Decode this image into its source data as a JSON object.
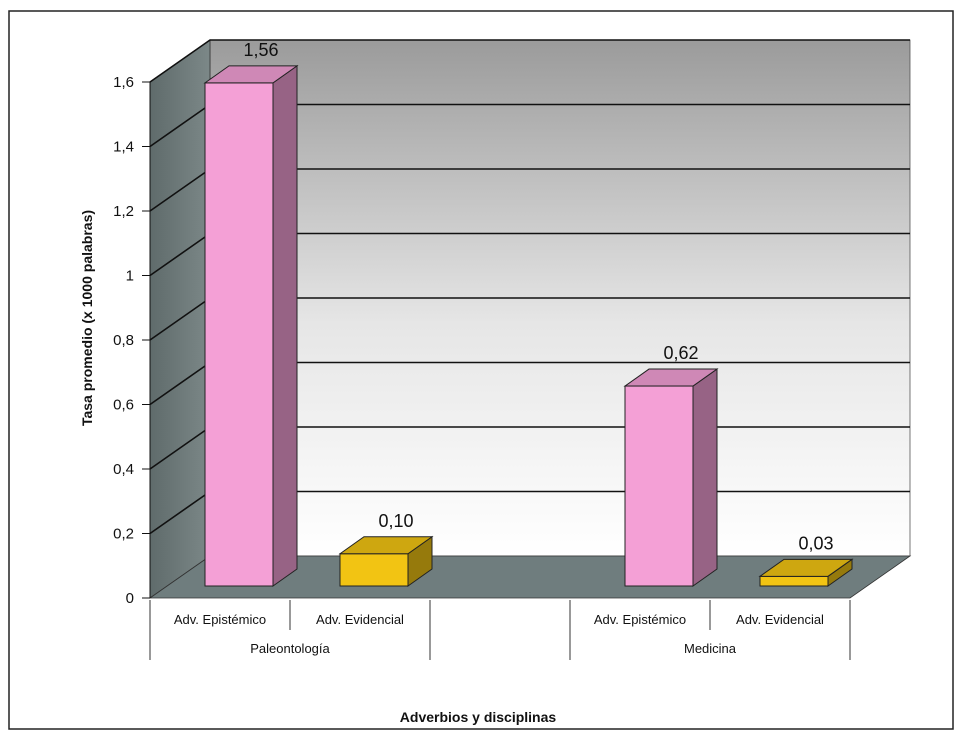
{
  "chart_data": {
    "type": "bar",
    "title": "",
    "xlabel": "Adverbios y disciplinas",
    "ylabel": "Tasa promedio (x 1000 palabras)",
    "ylim": [
      0,
      1.6
    ],
    "yticks": [
      "0",
      "0,2",
      "0,4",
      "0,6",
      "0,8",
      "1",
      "1,2",
      "1,4",
      "1,6"
    ],
    "grid": true,
    "groups": [
      {
        "name": "Paleontología",
        "bars": [
          {
            "category": "Adv. Epistémico",
            "value": 1.56,
            "label": "1,56",
            "color": "#f4a0d6"
          },
          {
            "category": "Adv. Evidencial",
            "value": 0.1,
            "label": "0,10",
            "color": "#f2c413"
          }
        ]
      },
      {
        "name": "Medicina",
        "bars": [
          {
            "category": "Adv. Epistémico",
            "value": 0.62,
            "label": "0,62",
            "color": "#f4a0d6"
          },
          {
            "category": "Adv. Evidencial",
            "value": 0.03,
            "label": "0,03",
            "color": "#f2c413"
          }
        ]
      }
    ]
  }
}
